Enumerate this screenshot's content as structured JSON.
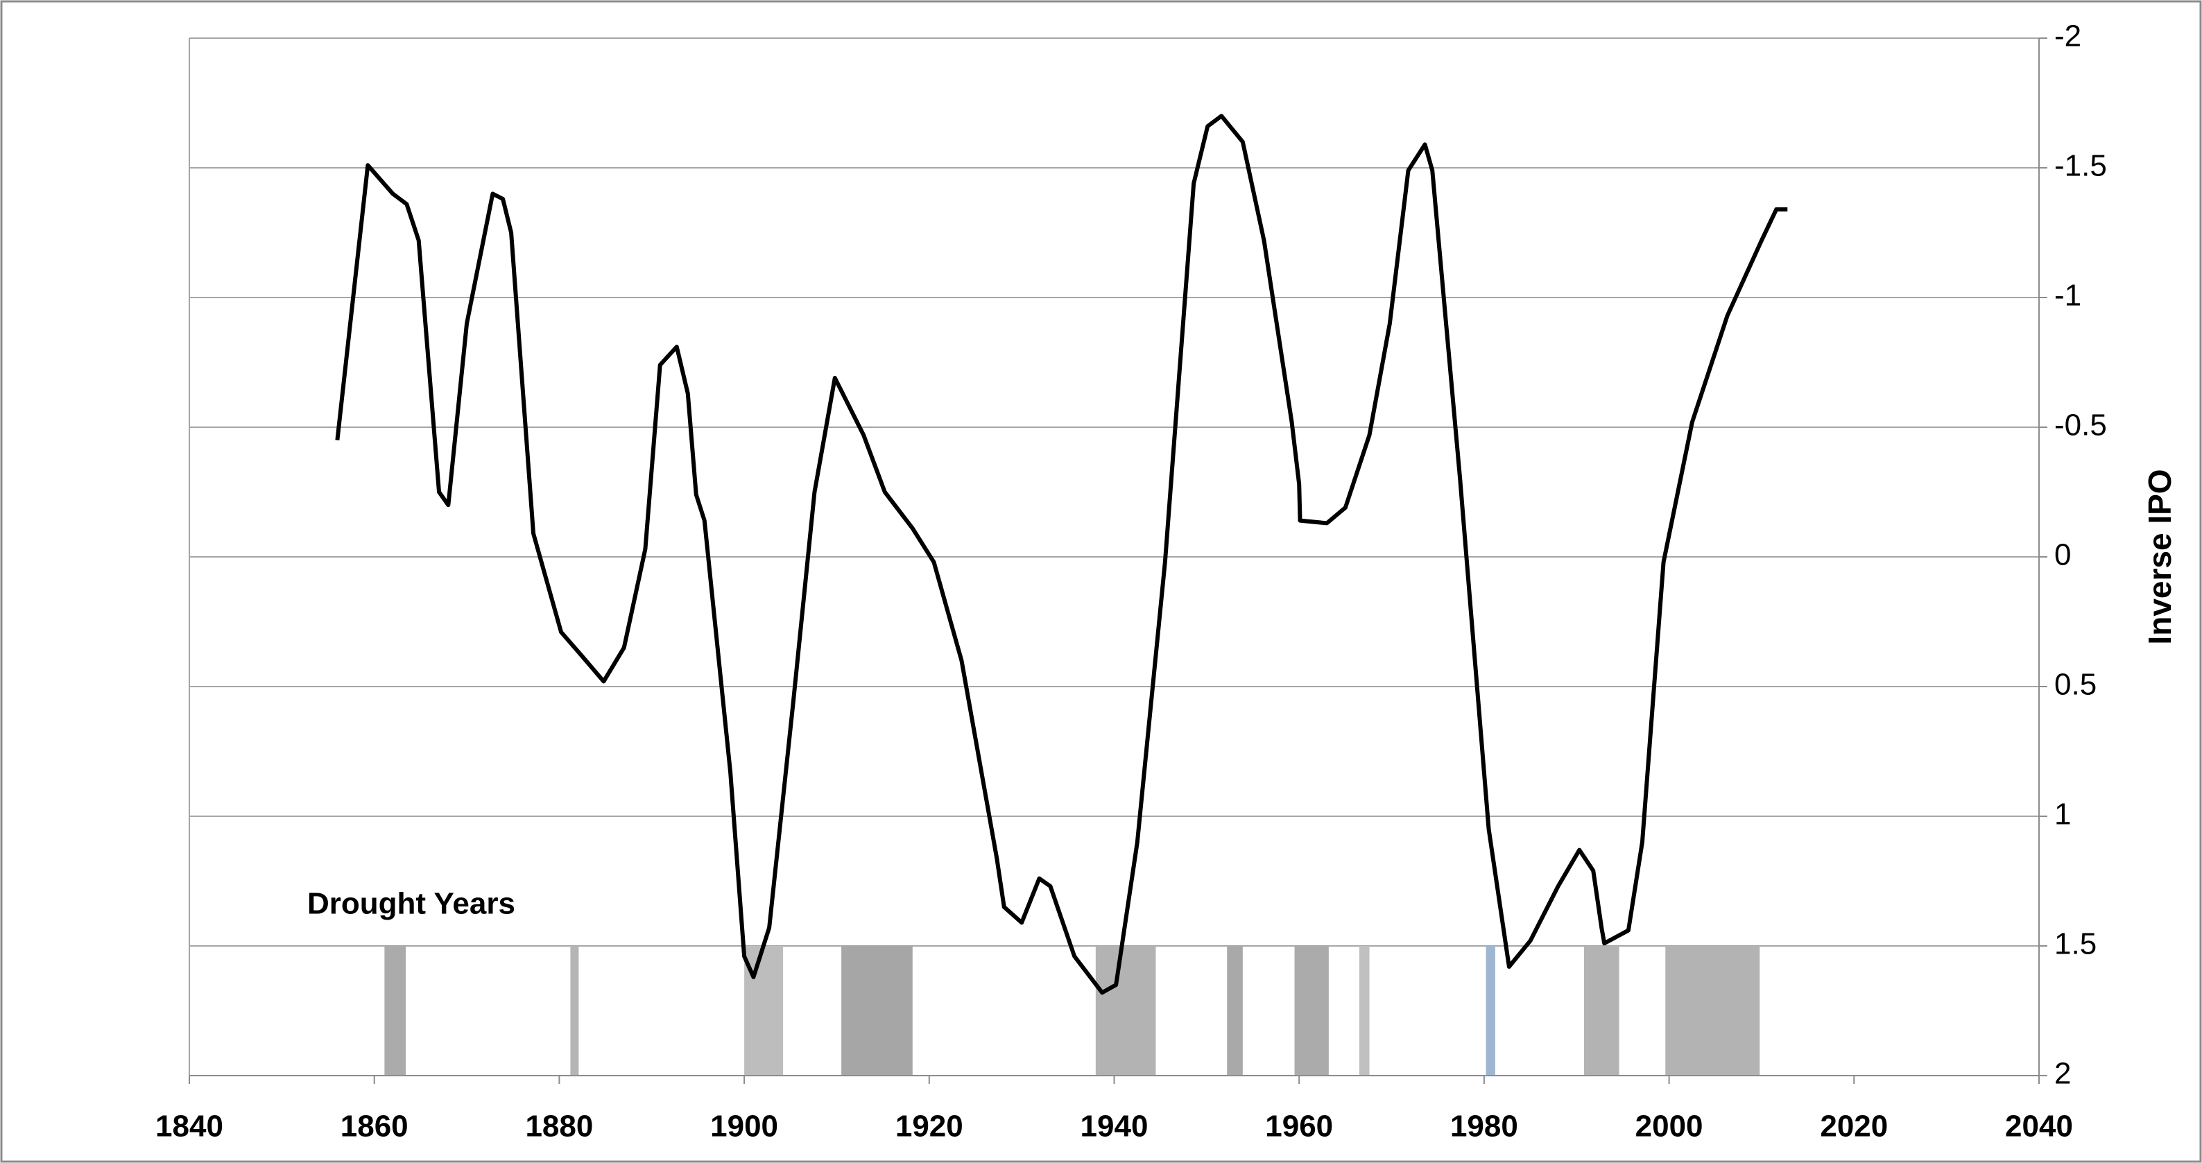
{
  "chart_data": {
    "type": "line",
    "y_label": "Inverse IPO",
    "annotation": "Drought Years",
    "x": [
      1856,
      1859.3,
      1862,
      1863.5,
      1864.8,
      1867,
      1868,
      1870,
      1872.8,
      1873.9,
      1874.8,
      1877.2,
      1880.2,
      1882.4,
      1884.8,
      1887,
      1889.3,
      1890.9,
      1892.7,
      1893.9,
      1894.8,
      1895.7,
      1898.5,
      1900,
      1901,
      1902.7,
      1905.3,
      1907.6,
      1909.8,
      1912.9,
      1915.2,
      1918.2,
      1920.5,
      1923.5,
      1927.3,
      1928.1,
      1930,
      1931.9,
      1933.1,
      1935.7,
      1938.7,
      1940.2,
      1942.5,
      1945.5,
      1948.6,
      1950.1,
      1951.6,
      1953.9,
      1956.2,
      1959.2,
      1960,
      1960.1,
      1963,
      1965,
      1967.6,
      1969.8,
      1971.8,
      1973.6,
      1974.4,
      1977.4,
      1980.5,
      1982.7,
      1985,
      1988,
      1990.3,
      1991.8,
      1992.7,
      1993,
      1995.6,
      1997.1,
      1999.4,
      2002.5,
      2006.3,
      2010,
      2011.6,
      2012.8
    ],
    "series": [
      {
        "name": "Inverse IPO",
        "color": "#000000",
        "values": [
          -0.45,
          -1.51,
          -1.4,
          -1.36,
          -1.22,
          -0.25,
          -0.2,
          -0.9,
          -1.4,
          -1.38,
          -1.25,
          -0.09,
          0.29,
          0.38,
          0.48,
          0.35,
          -0.03,
          -0.74,
          -0.81,
          -0.63,
          -0.24,
          -0.14,
          0.83,
          1.54,
          1.62,
          1.43,
          0.56,
          -0.25,
          -0.69,
          -0.47,
          -0.25,
          -0.11,
          0.02,
          0.4,
          1.16,
          1.35,
          1.41,
          1.24,
          1.27,
          1.54,
          1.68,
          1.65,
          1.1,
          0.02,
          -1.44,
          -1.66,
          -1.7,
          -1.6,
          -1.22,
          -0.52,
          -0.28,
          -0.14,
          -0.13,
          -0.19,
          -0.47,
          -0.9,
          -1.49,
          -1.59,
          -1.49,
          -0.3,
          1.05,
          1.58,
          1.48,
          1.27,
          1.13,
          1.21,
          1.43,
          1.49,
          1.44,
          1.1,
          0.02,
          -0.52,
          -0.93,
          -1.22,
          -1.34,
          -1.34
        ]
      }
    ],
    "droughts": {
      "band": [
        1.5,
        2
      ],
      "start": [
        1861.1,
        1881.2,
        1900,
        1910.5,
        1938,
        1952.2,
        1959.5,
        1966.5,
        1980.2,
        1990.8,
        1999.6
      ],
      "end": [
        1863.4,
        1882.1,
        1904.2,
        1918.2,
        1944.5,
        1953.9,
        1963.2,
        1967.6,
        1981.2,
        1994.6,
        2009.8
      ],
      "colors": [
        "#ababab",
        "#b5b5b5",
        "#bdbdbd",
        "#a6a6a6",
        "#b3b3b3",
        "#a9a9a9",
        "#ababab",
        "#c0c0c0",
        "#9fb6d0",
        "#b3b3b3",
        "#b3b3b3"
      ]
    },
    "xlim": [
      1840,
      2040
    ],
    "xticks": [
      1840,
      1860,
      1880,
      1900,
      1920,
      1940,
      1960,
      1980,
      2000,
      2020,
      2040
    ],
    "ylim": [
      2,
      -2
    ],
    "yticks": [
      -2,
      -1.5,
      -1,
      -0.5,
      0,
      0.5,
      1,
      1.5,
      2
    ],
    "grid": true,
    "y_axis_side": "right"
  }
}
